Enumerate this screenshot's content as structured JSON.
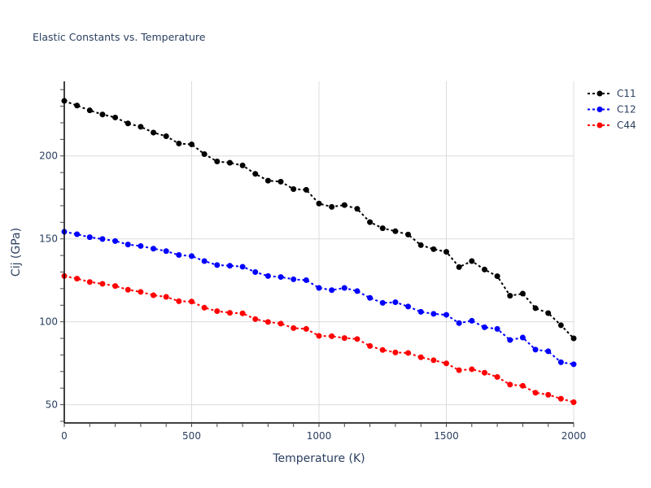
{
  "chart_data": {
    "type": "line",
    "title": "Elastic Constants vs. Temperature",
    "xlabel": "Temperature (K)",
    "ylabel": "Cij (GPa)",
    "xlim": [
      0,
      2000
    ],
    "ylim": [
      39,
      245
    ],
    "x_ticks": [
      0,
      500,
      1000,
      1500,
      2000
    ],
    "x_tick_labels": [
      "0",
      "500",
      "1000",
      "1500",
      "2000"
    ],
    "x_minor_tick_step": 100,
    "y_ticks": [
      50,
      100,
      150,
      200
    ],
    "y_tick_labels": [
      "50",
      "100",
      "150",
      "200"
    ],
    "y_minor_tick_step": 10,
    "grid": true,
    "legend_position": "top-right",
    "x": [
      0,
      50,
      100,
      150,
      200,
      250,
      300,
      350,
      400,
      450,
      500,
      550,
      600,
      650,
      700,
      750,
      800,
      850,
      900,
      950,
      1000,
      1050,
      1100,
      1150,
      1200,
      1250,
      1300,
      1350,
      1400,
      1450,
      1500,
      1550,
      1600,
      1650,
      1700,
      1750,
      1800,
      1850,
      1900,
      1950,
      2000
    ],
    "series": [
      {
        "name": "C11",
        "color": "#000000",
        "values": [
          233.2,
          230.4,
          227.5,
          225.0,
          223.2,
          219.6,
          217.6,
          214.1,
          211.9,
          207.5,
          207.0,
          201.1,
          196.7,
          195.9,
          194.3,
          189.2,
          185.1,
          184.5,
          180.0,
          179.6,
          171.3,
          169.3,
          170.4,
          168.1,
          160.1,
          156.4,
          154.6,
          152.6,
          146.2,
          143.8,
          142.2,
          133.0,
          136.6,
          131.5,
          127.5,
          115.7,
          117.0,
          108.2,
          105.2,
          97.9,
          90.0
        ]
      },
      {
        "name": "C12",
        "color": "#0000ff",
        "values": [
          154.3,
          152.8,
          151.0,
          149.9,
          148.7,
          146.6,
          145.7,
          144.1,
          142.6,
          140.3,
          139.6,
          136.6,
          134.2,
          133.8,
          133.2,
          130.0,
          127.6,
          127.0,
          125.6,
          125.1,
          120.4,
          119.1,
          120.4,
          118.5,
          114.4,
          111.4,
          111.8,
          109.2,
          106.0,
          104.8,
          104.2,
          99.2,
          100.6,
          96.7,
          95.7,
          89.0,
          90.5,
          83.2,
          82.2,
          75.6,
          74.4
        ]
      },
      {
        "name": "C44",
        "color": "#ff0000",
        "values": [
          127.6,
          126.0,
          124.0,
          122.9,
          121.6,
          119.3,
          118.0,
          116.0,
          115.0,
          112.4,
          112.2,
          108.5,
          106.4,
          105.4,
          105.1,
          101.6,
          99.9,
          98.9,
          96.2,
          95.7,
          91.5,
          91.3,
          90.2,
          89.6,
          85.4,
          83.0,
          81.5,
          81.2,
          78.6,
          76.8,
          74.9,
          70.8,
          71.4,
          69.3,
          66.7,
          62.1,
          61.4,
          57.2,
          56.0,
          53.6,
          51.5
        ]
      }
    ]
  }
}
